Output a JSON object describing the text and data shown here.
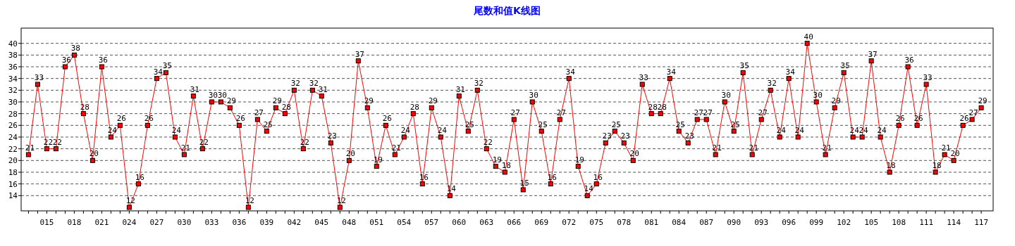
{
  "chart_data": {
    "type": "line",
    "title": "尾数和值K线图",
    "categories": [
      null,
      null,
      "015",
      null,
      null,
      "018",
      null,
      null,
      "021",
      null,
      null,
      "024",
      null,
      null,
      "027",
      null,
      null,
      "030",
      null,
      null,
      "033",
      null,
      null,
      "036",
      null,
      null,
      "039",
      null,
      null,
      "042",
      null,
      null,
      "045",
      null,
      null,
      "048",
      null,
      null,
      "051",
      null,
      null,
      "054",
      null,
      null,
      "057",
      null,
      null,
      "060",
      null,
      null,
      "063",
      null,
      null,
      "066",
      null,
      null,
      "069",
      null,
      null,
      "072",
      null,
      null,
      "075",
      null,
      null,
      "078",
      null,
      null,
      "081",
      null,
      null,
      "084",
      null,
      null,
      "087",
      null,
      null,
      "090",
      null,
      null,
      "093",
      null,
      null,
      "096",
      null,
      null,
      "099",
      null,
      null,
      "102",
      null,
      null,
      "105",
      null,
      null,
      "108",
      null,
      null,
      "111",
      null,
      null,
      "114",
      null,
      null,
      "117"
    ],
    "series": [
      {
        "color": "#ff0000",
        "values": [
          21,
          33,
          22,
          22,
          36,
          38,
          28,
          20,
          36,
          24,
          26,
          12,
          16,
          26,
          34,
          35,
          24,
          21,
          31,
          22,
          30,
          30,
          29,
          26,
          12,
          27,
          25,
          29,
          28,
          32,
          22,
          32,
          31,
          23,
          12,
          20,
          37,
          29,
          19,
          26,
          21,
          24,
          28,
          16,
          29,
          24,
          14,
          31,
          25,
          32,
          22,
          19,
          18,
          27,
          15,
          30,
          25,
          16,
          27,
          34,
          19,
          14,
          16,
          23,
          25,
          23,
          20,
          33,
          28,
          28,
          34,
          25,
          23,
          27,
          27,
          21,
          30,
          25,
          35,
          21,
          27,
          32,
          24,
          34,
          24,
          40,
          30,
          21,
          29,
          35,
          24,
          24,
          37,
          24,
          18,
          26,
          36,
          26,
          33,
          18,
          21,
          20,
          26,
          27,
          29
        ]
      }
    ],
    "ylim": [
      11.4,
      42.6
    ],
    "yticks": [
      14,
      16,
      18,
      20,
      22,
      24,
      26,
      28,
      30,
      32,
      34,
      36,
      38,
      40
    ],
    "grid": "y",
    "marker": "square",
    "line_style": "solid",
    "data_labels": true
  }
}
